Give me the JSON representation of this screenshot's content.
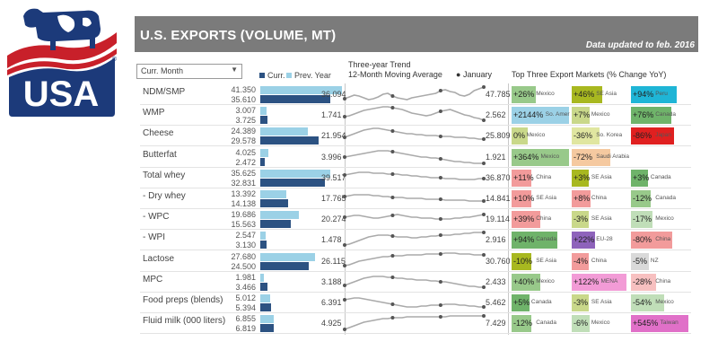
{
  "logo": {
    "text": "USA",
    "registered": "®"
  },
  "banner": {
    "title": "U.S. EXPORTS (VOLUME, MT)",
    "updated": "Data updated to feb. 2016"
  },
  "filter": {
    "selected": "Curr. Month"
  },
  "legend": {
    "curr": "Curr.",
    "prev": "Prev. Year"
  },
  "trend": {
    "line1": "Three-year Trend",
    "line2": "12-Month Moving Average",
    "jan": "January"
  },
  "markets_header": "Top Three Export Markets (% Change YoY)",
  "colors": {
    "curr_bar": "#2c5282",
    "prev_bar": "#9bd1e6",
    "header_bg": "#7b7b7b"
  },
  "rows": [
    {
      "name": "NDM/SMP",
      "curr": "35.610",
      "prev": "41.350",
      "curr_n": 35610,
      "prev_n": 41350,
      "trend_start": "36.094",
      "trend_end": "47.785",
      "spark": [
        5,
        7,
        9,
        8,
        6,
        4,
        5,
        7,
        10,
        11,
        8,
        6,
        5,
        4,
        6,
        7,
        8,
        9,
        10,
        11,
        14,
        15,
        13,
        12,
        9,
        8,
        10,
        14,
        16,
        18
      ],
      "markets": [
        {
          "pct": "+26%",
          "pct_n": 26,
          "country": "Mexico",
          "color": "#98c98a"
        },
        {
          "pct": "+46%",
          "pct_n": 46,
          "country": "SE Asia",
          "color": "#a8b820"
        },
        {
          "pct": "+94%",
          "pct_n": 94,
          "country": "Peru",
          "color": "#1fb5d6"
        }
      ]
    },
    {
      "name": "WMP",
      "curr": "3.725",
      "prev": "3.007",
      "curr_n": 3725,
      "prev_n": 3007,
      "trend_start": "1.741",
      "trend_end": "2.562",
      "spark": [
        8,
        9,
        11,
        13,
        15,
        16,
        17,
        18,
        19,
        19,
        18,
        17,
        16,
        14,
        12,
        11,
        10,
        9,
        10,
        12,
        14,
        15,
        16,
        14,
        12,
        10,
        9,
        7,
        6,
        4
      ],
      "markets": [
        {
          "pct": "+2144%",
          "pct_n": 2144,
          "country": "So. Amer",
          "color": "#9bd1e6"
        },
        {
          "pct": "+7%",
          "pct_n": 7,
          "country": "Mexico",
          "color": "#c9d88a"
        },
        {
          "pct": "+76%",
          "pct_n": 76,
          "country": "Canada",
          "color": "#6fb36a"
        }
      ]
    },
    {
      "name": "Cheese",
      "curr": "29.578",
      "prev": "24.389",
      "curr_n": 29578,
      "prev_n": 24389,
      "trend_start": "21.954",
      "trend_end": "25.809",
      "spark": [
        8,
        10,
        12,
        14,
        16,
        17,
        18,
        18,
        17,
        16,
        15,
        14,
        13,
        12,
        12,
        11,
        11,
        10,
        10,
        10,
        9,
        9,
        9,
        8,
        8,
        8,
        7,
        7,
        6,
        6
      ],
      "markets": [
        {
          "pct": "0%",
          "pct_n": 0,
          "country": "Mexico",
          "color": "#c9d88a"
        },
        {
          "pct": "-36%",
          "pct_n": -36,
          "country": "So. Korea",
          "color": "#e0e6a0"
        },
        {
          "pct": "-86%",
          "pct_n": -86,
          "country": "Japan",
          "color": "#e02020"
        }
      ]
    },
    {
      "name": "Butterfat",
      "curr": "2.472",
      "prev": "4.025",
      "curr_n": 2472,
      "prev_n": 4025,
      "trend_start": "3.996",
      "trend_end": "1.921",
      "spark": [
        10,
        11,
        12,
        13,
        14,
        15,
        16,
        17,
        17,
        17,
        16,
        15,
        14,
        13,
        12,
        11,
        10,
        10,
        9,
        9,
        8,
        7,
        6,
        5,
        5,
        4,
        4,
        3,
        3,
        3
      ],
      "markets": [
        {
          "pct": "+364%",
          "pct_n": 364,
          "country": "Mexico",
          "color": "#98c98a"
        },
        {
          "pct": "-72%",
          "pct_n": -72,
          "country": "Saudi Arabia",
          "color": "#f5c9a0"
        },
        {
          "pct": "",
          "pct_n": 0,
          "country": "",
          "color": "#ffffff"
        }
      ]
    },
    {
      "name": "Total whey",
      "curr": "32.831",
      "prev": "35.625",
      "curr_n": 32831,
      "prev_n": 35625,
      "trend_start": "39.517",
      "trend_end": "36.870",
      "spark": [
        13,
        14,
        15,
        16,
        16,
        16,
        15,
        15,
        15,
        14,
        14,
        14,
        13,
        13,
        12,
        12,
        11,
        11,
        10,
        10,
        10,
        9,
        9,
        9,
        8,
        8,
        8,
        8,
        9,
        9
      ],
      "markets": [
        {
          "pct": "+11%",
          "pct_n": 11,
          "country": "China",
          "color": "#f29b9b"
        },
        {
          "pct": "+3%",
          "pct_n": 3,
          "country": "SE Asia",
          "color": "#a8b820"
        },
        {
          "pct": "+3%",
          "pct_n": 3,
          "country": "Canada",
          "color": "#6fb36a"
        }
      ]
    },
    {
      "name": "- Dry whey",
      "curr": "14.138",
      "prev": "13.392",
      "curr_n": 14138,
      "prev_n": 13392,
      "trend_start": "17.765",
      "trend_end": "14.841",
      "spark": [
        12,
        13,
        14,
        14,
        14,
        14,
        13,
        13,
        12,
        12,
        11,
        11,
        11,
        10,
        10,
        10,
        10,
        9,
        9,
        9,
        9,
        8,
        8,
        8,
        8,
        8,
        7,
        7,
        7,
        7
      ],
      "markets": [
        {
          "pct": "+10%",
          "pct_n": 10,
          "country": "SE Asia",
          "color": "#f29b9b"
        },
        {
          "pct": "+8%",
          "pct_n": 8,
          "country": "China",
          "color": "#f29b9b"
        },
        {
          "pct": "-12%",
          "pct_n": -12,
          "country": "Canada",
          "color": "#98c98a"
        }
      ]
    },
    {
      "name": "- WPC",
      "curr": "15.563",
      "prev": "19.686",
      "curr_n": 15563,
      "prev_n": 19686,
      "trend_start": "20.274",
      "trend_end": "19.114",
      "spark": [
        12,
        13,
        14,
        14,
        13,
        12,
        11,
        11,
        12,
        13,
        14,
        15,
        14,
        13,
        12,
        12,
        11,
        11,
        11,
        10,
        10,
        10,
        10,
        11,
        11,
        12,
        12,
        13,
        14,
        15
      ],
      "markets": [
        {
          "pct": "+39%",
          "pct_n": 39,
          "country": "China",
          "color": "#f29b9b"
        },
        {
          "pct": "-3%",
          "pct_n": -3,
          "country": "SE Asia",
          "color": "#c9d88a"
        },
        {
          "pct": "-17%",
          "pct_n": -17,
          "country": "Mexico",
          "color": "#c0deb8"
        }
      ]
    },
    {
      "name": "- WPI",
      "curr": "3.130",
      "prev": "2.547",
      "curr_n": 3130,
      "prev_n": 2547,
      "trend_start": "1.478",
      "trend_end": "2.916",
      "spark": [
        4,
        5,
        7,
        9,
        11,
        13,
        14,
        15,
        15,
        15,
        14,
        13,
        13,
        13,
        12,
        12,
        13,
        13,
        14,
        14,
        15,
        15,
        15,
        16,
        16,
        17,
        17,
        18,
        18,
        18
      ],
      "markets": [
        {
          "pct": "+94%",
          "pct_n": 94,
          "country": "Canada",
          "color": "#6fb36a"
        },
        {
          "pct": "+22%",
          "pct_n": 22,
          "country": "EU-28",
          "color": "#8e63bb"
        },
        {
          "pct": "-80%",
          "pct_n": -80,
          "country": "China",
          "color": "#f29b9b"
        }
      ]
    },
    {
      "name": "Lactose",
      "curr": "24.500",
      "prev": "27.680",
      "curr_n": 24500,
      "prev_n": 27680,
      "trend_start": "26.115",
      "trend_end": "30.760",
      "spark": [
        5,
        6,
        8,
        10,
        11,
        12,
        13,
        14,
        15,
        15,
        16,
        16,
        16,
        17,
        17,
        17,
        17,
        18,
        18,
        18,
        18,
        19,
        19,
        19,
        18,
        18,
        18,
        17,
        17,
        17
      ],
      "markets": [
        {
          "pct": "-10%",
          "pct_n": -10,
          "country": "SE Asia",
          "color": "#a8b820"
        },
        {
          "pct": "-4%",
          "pct_n": -4,
          "country": "China",
          "color": "#f29b9b"
        },
        {
          "pct": "-5%",
          "pct_n": -5,
          "country": "NZ",
          "color": "#d9d9d9"
        }
      ]
    },
    {
      "name": "MPC",
      "curr": "3.466",
      "prev": "1.981",
      "curr_n": 3466,
      "prev_n": 1981,
      "trend_start": "3.188",
      "trend_end": "2.433",
      "spark": [
        6,
        8,
        10,
        12,
        14,
        15,
        16,
        16,
        16,
        15,
        15,
        14,
        14,
        13,
        13,
        12,
        12,
        12,
        11,
        11,
        10,
        10,
        9,
        8,
        7,
        6,
        5,
        5,
        4,
        4
      ],
      "markets": [
        {
          "pct": "+40%",
          "pct_n": 40,
          "country": "Mexico",
          "color": "#98c98a"
        },
        {
          "pct": "+122%",
          "pct_n": 122,
          "country": "MENA",
          "color": "#f29bd6"
        },
        {
          "pct": "-28%",
          "pct_n": -28,
          "country": "China",
          "color": "#f7c0c0"
        }
      ]
    },
    {
      "name": "Food preps (blends)",
      "curr": "5.394",
      "prev": "5.012",
      "curr_n": 5394,
      "prev_n": 5012,
      "trend_start": "6.391",
      "trend_end": "5.462",
      "spark": [
        13,
        14,
        15,
        15,
        14,
        13,
        12,
        11,
        10,
        9,
        8,
        7,
        6,
        5,
        5,
        5,
        6,
        6,
        7,
        7,
        7,
        8,
        8,
        8,
        7,
        7,
        6,
        6,
        5,
        5
      ],
      "markets": [
        {
          "pct": "+5%",
          "pct_n": 5,
          "country": "Canada",
          "color": "#6fb36a"
        },
        {
          "pct": "-3%",
          "pct_n": -3,
          "country": "SE Asia",
          "color": "#c9d88a"
        },
        {
          "pct": "-54%",
          "pct_n": -54,
          "country": "Mexico",
          "color": "#c0deb8"
        }
      ]
    },
    {
      "name": "Fluid milk (000 liters)",
      "curr": "6.819",
      "prev": "6.855",
      "curr_n": 6819,
      "prev_n": 6855,
      "trend_start": "4.925",
      "trend_end": "7.429",
      "spark": [
        3,
        5,
        7,
        9,
        11,
        12,
        13,
        14,
        15,
        15,
        16,
        16,
        16,
        17,
        17,
        17,
        17,
        17,
        17,
        17,
        17,
        17,
        18,
        18,
        18,
        18,
        18,
        18,
        18,
        18
      ],
      "markets": [
        {
          "pct": "-12%",
          "pct_n": -12,
          "country": "Canada",
          "color": "#98c98a"
        },
        {
          "pct": "-6%",
          "pct_n": -6,
          "country": "Mexico",
          "color": "#c0deb8"
        },
        {
          "pct": "+545%",
          "pct_n": 545,
          "country": "Taiwan",
          "color": "#e070c8"
        }
      ]
    }
  ]
}
